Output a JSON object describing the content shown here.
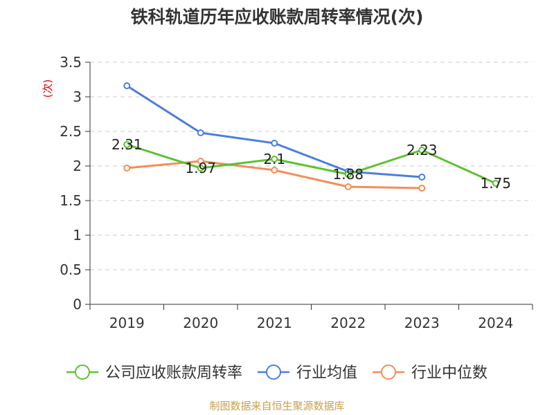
{
  "chart_data": {
    "type": "line",
    "title": "铁科轨道历年应收账款周转率情况(次)",
    "ylabel": "(次)",
    "xlabel": "",
    "categories": [
      "2019",
      "2020",
      "2021",
      "2022",
      "2023",
      "2024"
    ],
    "ylim": [
      0,
      3.5
    ],
    "yticks": [
      "0",
      "0.5",
      "1",
      "1.5",
      "2",
      "2.5",
      "3",
      "3.5"
    ],
    "grid": true,
    "legend_position": "bottom",
    "series": [
      {
        "name": "公司应收账款周转率",
        "color": "#5cc22e",
        "values": [
          2.31,
          1.97,
          2.1,
          1.88,
          2.23,
          1.75
        ],
        "labels": [
          "2.31",
          "1.97",
          "2.1",
          "1.88",
          "2.23",
          "1.75"
        ]
      },
      {
        "name": "行业均值",
        "color": "#4a7fdb",
        "values": [
          3.16,
          2.48,
          2.33,
          1.92,
          1.84,
          null
        ]
      },
      {
        "name": "行业中位数",
        "color": "#f58d57",
        "values": [
          1.97,
          2.07,
          1.94,
          1.7,
          1.68,
          null
        ]
      }
    ],
    "source": "制图数据来自恒生聚源数据库"
  }
}
